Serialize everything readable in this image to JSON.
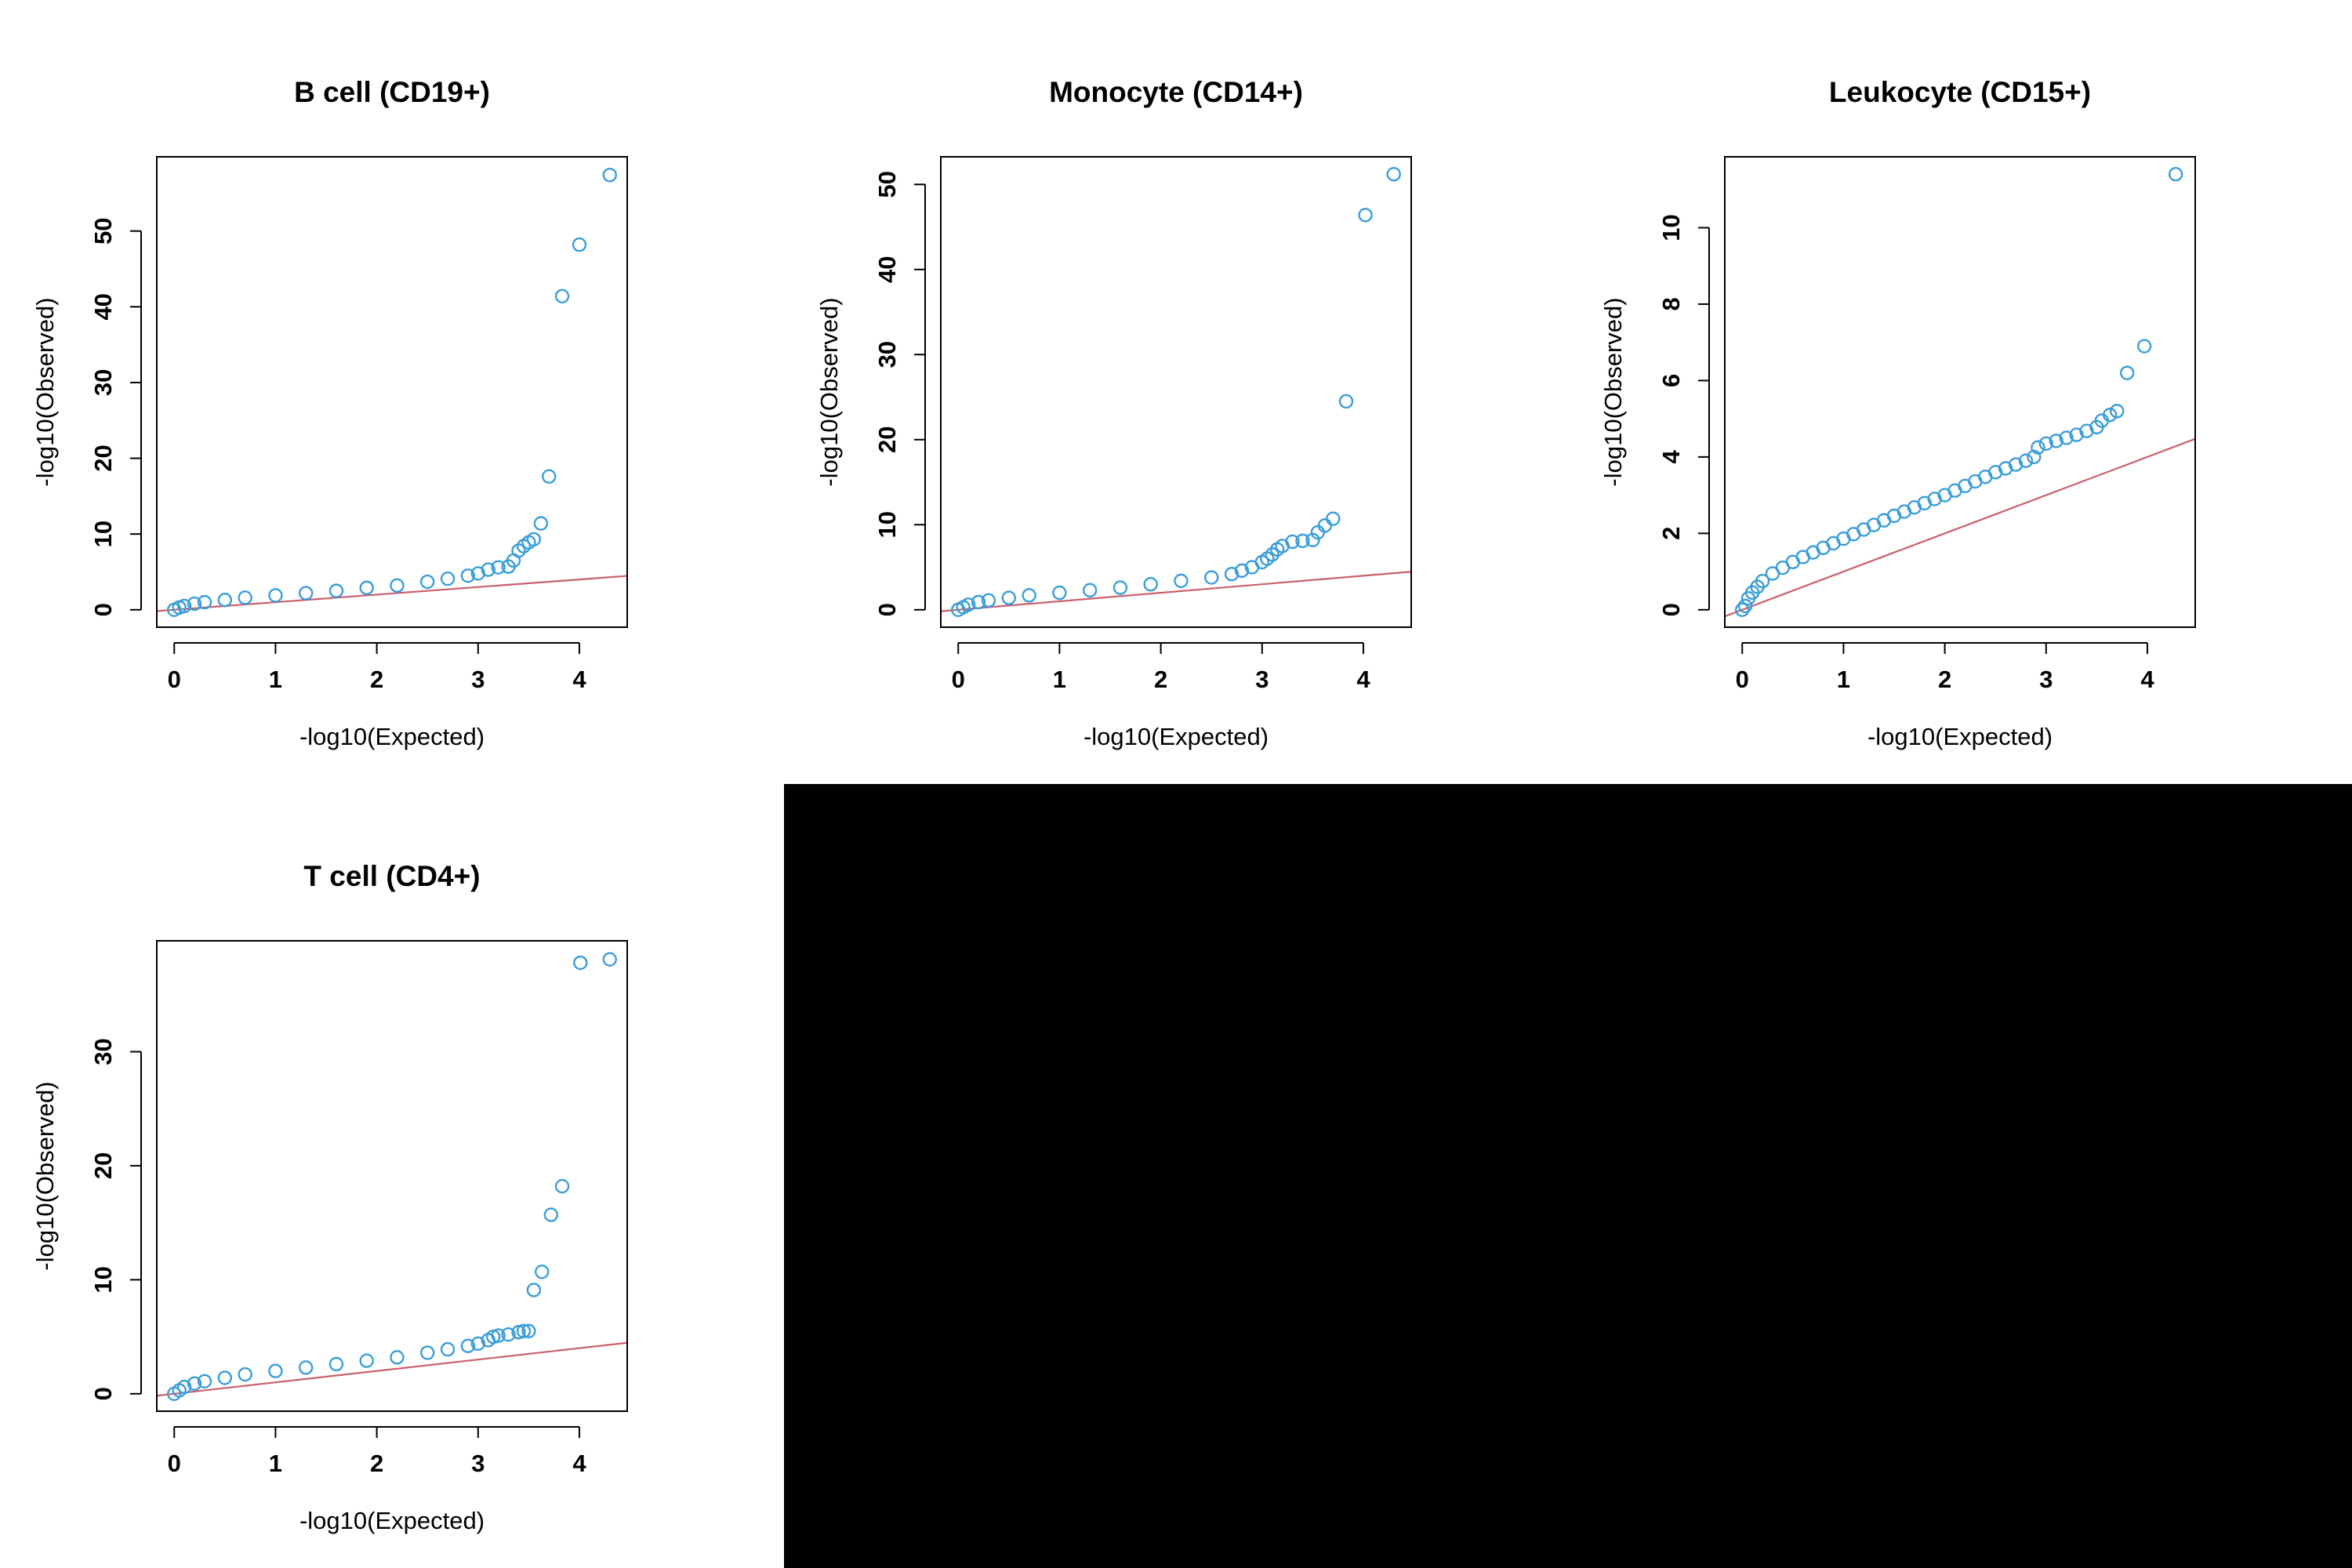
{
  "figure": {
    "point_color": "#3a9ed8",
    "line_color": "#c9606d",
    "blank_region_color": "#000000"
  },
  "chart_data": [
    {
      "type": "scatter",
      "title": "B cell (CD19+)",
      "xlabel": "-log10(Expected)",
      "ylabel": "-log10(Observed)",
      "xlim": [
        0,
        4.3
      ],
      "ylim": [
        0,
        57.5
      ],
      "xticks": [
        0,
        1,
        2,
        3,
        4
      ],
      "yticks": [
        0,
        10,
        20,
        30,
        40,
        50
      ],
      "reference_line": {
        "slope": 1,
        "intercept": 0
      },
      "series": [
        {
          "points": [
            [
              0,
              0
            ],
            [
              0.05,
              0.3
            ],
            [
              0.1,
              0.5
            ],
            [
              0.2,
              0.8
            ],
            [
              0.3,
              1.0
            ],
            [
              0.5,
              1.3
            ],
            [
              0.7,
              1.6
            ],
            [
              1,
              1.9
            ],
            [
              1.3,
              2.2
            ],
            [
              1.6,
              2.5
            ],
            [
              1.9,
              2.9
            ],
            [
              2.2,
              3.2
            ],
            [
              2.5,
              3.7
            ],
            [
              2.7,
              4.1
            ],
            [
              2.9,
              4.5
            ],
            [
              3.0,
              4.8
            ],
            [
              3.1,
              5.3
            ],
            [
              3.2,
              5.6
            ],
            [
              3.3,
              5.7
            ],
            [
              3.35,
              6.5
            ],
            [
              3.4,
              7.8
            ],
            [
              3.45,
              8.4
            ],
            [
              3.5,
              8.9
            ],
            [
              3.55,
              9.3
            ],
            [
              3.62,
              11.4
            ],
            [
              3.7,
              17.6
            ],
            [
              3.83,
              41.4
            ],
            [
              4.0,
              48.2
            ],
            [
              4.3,
              57.4
            ]
          ]
        }
      ]
    },
    {
      "type": "scatter",
      "title": "Monocyte (CD14+)",
      "xlabel": "-log10(Expected)",
      "ylabel": "-log10(Observed)",
      "xlim": [
        0,
        4.3
      ],
      "ylim": [
        0,
        51.2
      ],
      "xticks": [
        0,
        1,
        2,
        3,
        4
      ],
      "yticks": [
        0,
        10,
        20,
        30,
        40,
        50
      ],
      "reference_line": {
        "slope": 1,
        "intercept": 0
      },
      "series": [
        {
          "points": [
            [
              0,
              0
            ],
            [
              0.05,
              0.3
            ],
            [
              0.1,
              0.6
            ],
            [
              0.2,
              0.9
            ],
            [
              0.3,
              1.1
            ],
            [
              0.5,
              1.4
            ],
            [
              0.7,
              1.7
            ],
            [
              1,
              2.0
            ],
            [
              1.3,
              2.3
            ],
            [
              1.6,
              2.6
            ],
            [
              1.9,
              3.0
            ],
            [
              2.2,
              3.4
            ],
            [
              2.5,
              3.8
            ],
            [
              2.7,
              4.2
            ],
            [
              2.8,
              4.6
            ],
            [
              2.9,
              5.0
            ],
            [
              3.0,
              5.6
            ],
            [
              3.05,
              6.0
            ],
            [
              3.1,
              6.5
            ],
            [
              3.15,
              7.1
            ],
            [
              3.2,
              7.5
            ],
            [
              3.3,
              8.0
            ],
            [
              3.4,
              8.1
            ],
            [
              3.5,
              8.2
            ],
            [
              3.55,
              9.1
            ],
            [
              3.62,
              9.9
            ],
            [
              3.7,
              10.7
            ],
            [
              3.83,
              24.5
            ],
            [
              4.02,
              46.4
            ],
            [
              4.3,
              51.2
            ]
          ]
        }
      ]
    },
    {
      "type": "scatter",
      "title": "Leukocyte (CD15+)",
      "xlabel": "-log10(Expected)",
      "ylabel": "-log10(Observed)",
      "xlim": [
        0,
        4.3
      ],
      "ylim": [
        0,
        11.4
      ],
      "xticks": [
        0,
        1,
        2,
        3,
        4
      ],
      "yticks": [
        0,
        2,
        4,
        6,
        8,
        10
      ],
      "reference_line": {
        "slope": 1,
        "intercept": 0
      },
      "series": [
        {
          "points": [
            [
              0,
              0
            ],
            [
              0.03,
              0.1
            ],
            [
              0.06,
              0.3
            ],
            [
              0.1,
              0.45
            ],
            [
              0.15,
              0.6
            ],
            [
              0.2,
              0.75
            ],
            [
              0.3,
              0.95
            ],
            [
              0.4,
              1.1
            ],
            [
              0.5,
              1.25
            ],
            [
              0.6,
              1.38
            ],
            [
              0.7,
              1.5
            ],
            [
              0.8,
              1.62
            ],
            [
              0.9,
              1.74
            ],
            [
              1.0,
              1.86
            ],
            [
              1.1,
              1.98
            ],
            [
              1.2,
              2.1
            ],
            [
              1.3,
              2.22
            ],
            [
              1.4,
              2.34
            ],
            [
              1.5,
              2.46
            ],
            [
              1.6,
              2.57
            ],
            [
              1.7,
              2.68
            ],
            [
              1.8,
              2.79
            ],
            [
              1.9,
              2.9
            ],
            [
              2.0,
              3.0
            ],
            [
              2.1,
              3.12
            ],
            [
              2.2,
              3.24
            ],
            [
              2.3,
              3.36
            ],
            [
              2.4,
              3.48
            ],
            [
              2.5,
              3.6
            ],
            [
              2.6,
              3.7
            ],
            [
              2.7,
              3.8
            ],
            [
              2.8,
              3.9
            ],
            [
              2.88,
              4.0
            ],
            [
              2.92,
              4.25
            ],
            [
              3.0,
              4.35
            ],
            [
              3.1,
              4.42
            ],
            [
              3.2,
              4.5
            ],
            [
              3.3,
              4.58
            ],
            [
              3.4,
              4.68
            ],
            [
              3.5,
              4.78
            ],
            [
              3.55,
              4.95
            ],
            [
              3.63,
              5.1
            ],
            [
              3.7,
              5.2
            ],
            [
              3.8,
              6.2
            ],
            [
              3.97,
              6.9
            ],
            [
              4.28,
              11.4
            ]
          ]
        }
      ]
    },
    {
      "type": "scatter",
      "title": "T cell (CD4+)",
      "xlabel": "-log10(Expected)",
      "ylabel": "-log10(Observed)",
      "xlim": [
        0,
        4.3
      ],
      "ylim": [
        0,
        38.2
      ],
      "xticks": [
        0,
        1,
        2,
        3,
        4
      ],
      "yticks": [
        0,
        10,
        20,
        30
      ],
      "reference_line": {
        "slope": 1,
        "intercept": 0
      },
      "series": [
        {
          "points": [
            [
              0,
              0
            ],
            [
              0.05,
              0.3
            ],
            [
              0.1,
              0.6
            ],
            [
              0.2,
              0.9
            ],
            [
              0.3,
              1.1
            ],
            [
              0.5,
              1.4
            ],
            [
              0.7,
              1.7
            ],
            [
              1,
              2.0
            ],
            [
              1.3,
              2.3
            ],
            [
              1.6,
              2.6
            ],
            [
              1.9,
              2.9
            ],
            [
              2.2,
              3.2
            ],
            [
              2.5,
              3.6
            ],
            [
              2.7,
              3.9
            ],
            [
              2.9,
              4.2
            ],
            [
              3.0,
              4.4
            ],
            [
              3.1,
              4.7
            ],
            [
              3.15,
              5.0
            ],
            [
              3.2,
              5.1
            ],
            [
              3.3,
              5.2
            ],
            [
              3.4,
              5.4
            ],
            [
              3.45,
              5.5
            ],
            [
              3.5,
              5.5
            ],
            [
              3.55,
              9.1
            ],
            [
              3.63,
              10.7
            ],
            [
              3.72,
              15.7
            ],
            [
              3.83,
              18.2
            ],
            [
              4.01,
              37.8
            ],
            [
              4.3,
              38.1
            ]
          ]
        }
      ]
    }
  ]
}
